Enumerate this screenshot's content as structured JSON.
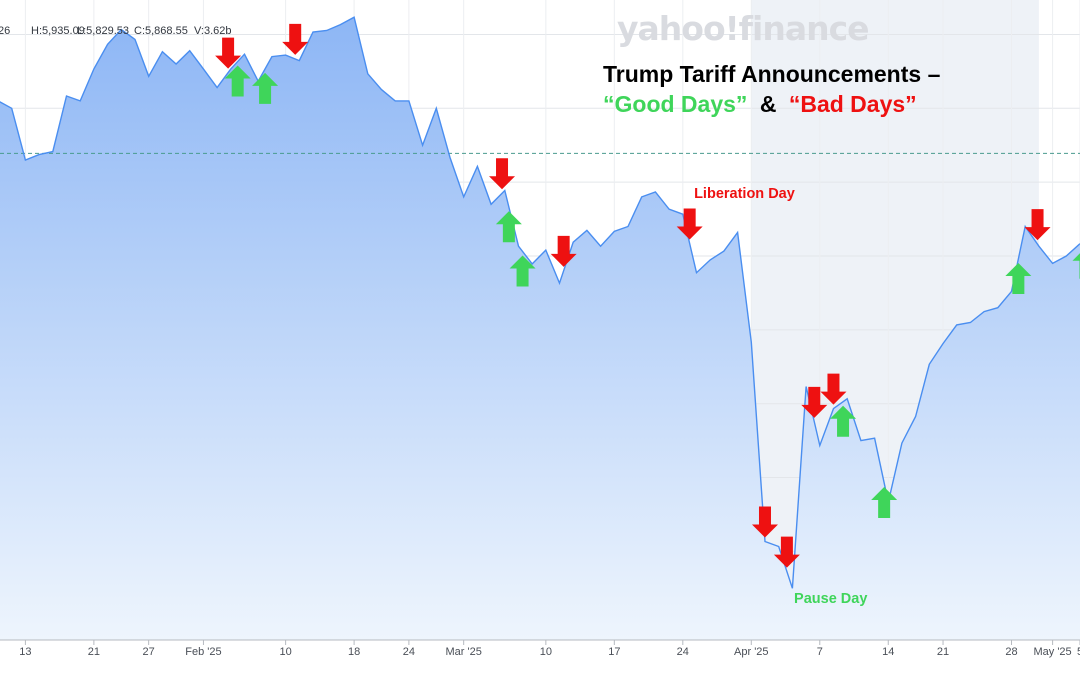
{
  "watermark": {
    "brand": "yahoo!finance"
  },
  "ohlc_readout": {
    "open_partial": "26",
    "high": "H:5,935.09",
    "low": "L:5,829.53",
    "close": "C:5,868.55",
    "volume": "V:3.62b"
  },
  "colors": {
    "line": "#4a8ef0",
    "fill_top": "#8db6f5",
    "fill_bottom": "#eef5fd",
    "good": "#3fd55a",
    "bad": "#ee1111",
    "highlight_band": "#eef2f7",
    "reference_line": "#4a9b8e"
  },
  "chart_data": {
    "type": "area",
    "title_main": "Trump Tariff Announcements –",
    "title_good": "“Good Days”",
    "title_amp": "&",
    "title_bad": "“Bad Days”",
    "xlabel": "",
    "ylabel": "",
    "ylim": [
      4880,
      6180
    ],
    "y_grid_values": [
      6110,
      5960,
      5810,
      5660,
      5510,
      5360,
      5210,
      5060,
      4910
    ],
    "reference_value": 5868.55,
    "x_tick_labels": [
      {
        "label": "13",
        "index": 2
      },
      {
        "label": "21",
        "index": 7
      },
      {
        "label": "27",
        "index": 11
      },
      {
        "label": "Feb '25",
        "index": 15
      },
      {
        "label": "10",
        "index": 21
      },
      {
        "label": "18",
        "index": 26
      },
      {
        "label": "24",
        "index": 30
      },
      {
        "label": "Mar '25",
        "index": 34
      },
      {
        "label": "10",
        "index": 40
      },
      {
        "label": "17",
        "index": 45
      },
      {
        "label": "24",
        "index": 50
      },
      {
        "label": "Apr '25",
        "index": 55
      },
      {
        "label": "7",
        "index": 60
      },
      {
        "label": "14",
        "index": 65
      },
      {
        "label": "21",
        "index": 69
      },
      {
        "label": "28",
        "index": 74
      },
      {
        "label": "May '25",
        "index": 77
      },
      {
        "label": "5",
        "index": 79
      }
    ],
    "highlight_range": [
      55,
      76
    ],
    "values": [
      5975,
      5960,
      5855,
      5866,
      5872,
      5985,
      5975,
      6040,
      6090,
      6120,
      6100,
      6025,
      6075,
      6050,
      6077,
      6040,
      6002,
      6040,
      6070,
      6015,
      6065,
      6068,
      6057,
      6115,
      6118,
      6130,
      6145,
      6030,
      5998,
      5975,
      5975,
      5885,
      5960,
      5860,
      5780,
      5842,
      5765,
      5793,
      5680,
      5644,
      5672,
      5605,
      5688,
      5712,
      5680,
      5710,
      5720,
      5780,
      5790,
      5755,
      5745,
      5626,
      5652,
      5670,
      5708,
      5485,
      5080,
      5070,
      4985,
      5395,
      5275,
      5350,
      5370,
      5285,
      5290,
      5160,
      5280,
      5334,
      5440,
      5482,
      5520,
      5525,
      5547,
      5555,
      5588,
      5720,
      5680,
      5645,
      5660,
      5685
    ],
    "annotations": [
      {
        "text": "Liberation Day",
        "color": "bad",
        "index": 54.5,
        "value": 5778
      },
      {
        "text": "Pause Day",
        "color": "good",
        "index": 60.8,
        "value": 4955
      }
    ],
    "good_days": [
      17.5,
      19.5,
      37.3,
      38.3,
      61.7,
      64.7,
      74.5,
      79.4
    ],
    "bad_days": [
      16.8,
      21.7,
      36.8,
      41.3,
      50.5,
      56.0,
      57.6,
      59.6,
      61.0,
      75.9
    ]
  }
}
